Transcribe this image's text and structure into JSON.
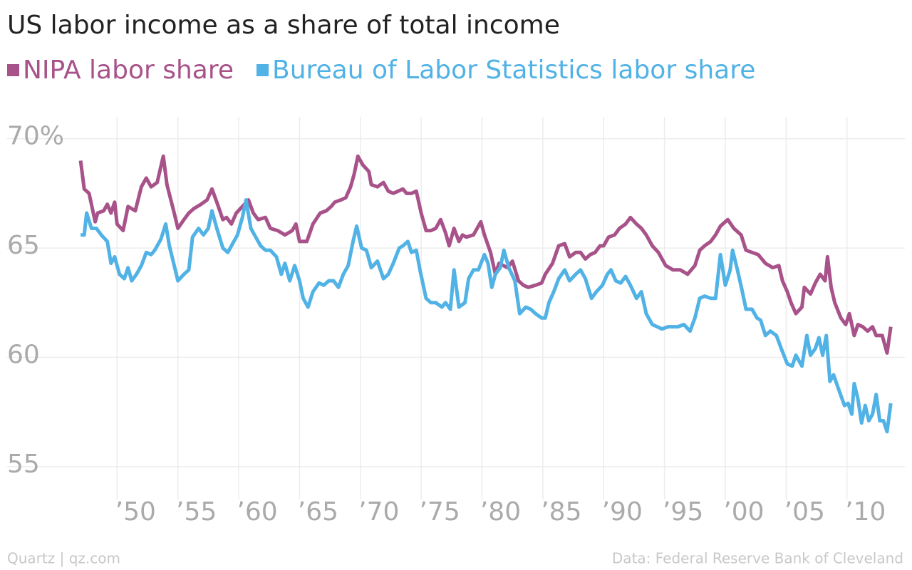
{
  "chart_data": {
    "type": "line",
    "title": "US labor income as a share of total income",
    "source": "Data: Federal Reserve Bank of Cleveland",
    "credit": "Quartz | qz.com",
    "xlim": [
      1946,
      2014
    ],
    "xticks": [
      {
        "value": 1950,
        "label": "’50"
      },
      {
        "value": 1955,
        "label": "’55"
      },
      {
        "value": 1960,
        "label": "’60"
      },
      {
        "value": 1965,
        "label": "’65"
      },
      {
        "value": 1970,
        "label": "’70"
      },
      {
        "value": 1975,
        "label": "’75"
      },
      {
        "value": 1980,
        "label": "’80"
      },
      {
        "value": 1985,
        "label": "’85"
      },
      {
        "value": 1990,
        "label": "’90"
      },
      {
        "value": 1995,
        "label": "’95"
      },
      {
        "value": 2000,
        "label": "’00"
      },
      {
        "value": 2005,
        "label": "’05"
      },
      {
        "value": 2010,
        "label": "’10"
      }
    ],
    "ylim": [
      53.5,
      71
    ],
    "yticks": [
      {
        "value": 70,
        "label": "70%"
      },
      65,
      60,
      55
    ],
    "grid": true,
    "series": [
      {
        "name": "NIPA labor share",
        "color": "#a8528a",
        "x": [
          1947.0,
          1947.3,
          1947.7,
          1948.2,
          1948.4,
          1948.9,
          1949.2,
          1949.5,
          1949.8,
          1950.0,
          1950.5,
          1950.9,
          1951.5,
          1952.0,
          1952.4,
          1952.8,
          1953.3,
          1953.8,
          1954.1,
          1954.7,
          1955.0,
          1955.5,
          1955.9,
          1956.3,
          1956.9,
          1957.4,
          1957.8,
          1958.2,
          1958.7,
          1959.0,
          1959.4,
          1959.8,
          1960.3,
          1960.8,
          1961.2,
          1961.6,
          1962.2,
          1962.6,
          1963.2,
          1963.8,
          1964.4,
          1964.7,
          1965.0,
          1965.6,
          1966.1,
          1966.7,
          1967.2,
          1967.6,
          1967.9,
          1968.4,
          1968.8,
          1969.2,
          1969.5,
          1969.8,
          1970.2,
          1970.7,
          1970.9,
          1971.4,
          1971.9,
          1972.3,
          1972.7,
          1973.1,
          1973.5,
          1973.8,
          1974.2,
          1974.6,
          1975.0,
          1975.4,
          1975.8,
          1976.2,
          1976.6,
          1977.0,
          1977.3,
          1977.7,
          1978.1,
          1978.4,
          1978.7,
          1979.3,
          1979.9,
          1980.2,
          1980.7,
          1981.1,
          1981.4,
          1982.1,
          1982.5,
          1983.0,
          1983.4,
          1983.8,
          1984.4,
          1984.9,
          1985.2,
          1985.8,
          1986.3,
          1986.8,
          1987.2,
          1987.7,
          1988.1,
          1988.5,
          1988.9,
          1989.3,
          1989.7,
          1990.0,
          1990.4,
          1990.9,
          1991.3,
          1991.8,
          1992.2,
          1992.7,
          1993.1,
          1993.5,
          1994.0,
          1994.5,
          1995.1,
          1995.7,
          1996.3,
          1996.9,
          1997.5,
          1997.9,
          1998.3,
          1998.8,
          1999.2,
          1999.6,
          2000.2,
          2000.7,
          2001.3,
          2001.7,
          2002.2,
          2002.7,
          2003.3,
          2003.9,
          2004.4,
          2004.7,
          2005.1,
          2005.4,
          2005.8,
          2006.3,
          2006.5,
          2007.0,
          2007.4,
          2007.8,
          2008.2,
          2008.4,
          2008.7,
          2009.0,
          2009.5,
          2009.9,
          2010.2,
          2010.6,
          2010.9,
          2011.3,
          2011.7,
          2012.1,
          2012.4,
          2012.9,
          2013.3,
          2013.6
        ],
        "values": [
          69.0,
          67.7,
          67.5,
          66.2,
          66.6,
          66.7,
          67.0,
          66.6,
          67.1,
          66.1,
          65.8,
          66.9,
          66.7,
          67.8,
          68.2,
          67.8,
          68.0,
          69.2,
          67.9,
          66.6,
          65.9,
          66.3,
          66.6,
          66.8,
          67.0,
          67.2,
          67.7,
          67.1,
          66.3,
          66.4,
          66.1,
          66.6,
          66.9,
          67.2,
          66.6,
          66.3,
          66.4,
          65.9,
          65.8,
          65.6,
          65.8,
          66.1,
          65.3,
          65.3,
          66.1,
          66.6,
          66.7,
          66.9,
          67.1,
          67.2,
          67.3,
          67.8,
          68.4,
          69.2,
          68.8,
          68.5,
          67.9,
          67.8,
          68.0,
          67.6,
          67.5,
          67.6,
          67.7,
          67.5,
          67.5,
          67.6,
          66.6,
          65.8,
          65.8,
          65.9,
          66.3,
          65.7,
          65.1,
          65.9,
          65.3,
          65.6,
          65.5,
          65.6,
          66.2,
          65.6,
          64.8,
          63.8,
          64.3,
          64.1,
          64.4,
          63.5,
          63.3,
          63.2,
          63.3,
          63.4,
          63.8,
          64.3,
          65.1,
          65.2,
          64.6,
          64.8,
          64.8,
          64.5,
          64.7,
          64.8,
          65.1,
          65.1,
          65.5,
          65.6,
          65.9,
          66.1,
          66.4,
          66.1,
          65.9,
          65.6,
          65.1,
          64.8,
          64.2,
          64.0,
          64.0,
          63.8,
          64.2,
          64.9,
          65.1,
          65.3,
          65.6,
          66.0,
          66.3,
          65.9,
          65.6,
          64.9,
          64.8,
          64.7,
          64.3,
          64.1,
          64.2,
          63.5,
          63.0,
          62.5,
          62.0,
          62.3,
          63.2,
          62.9,
          63.4,
          63.8,
          63.5,
          64.6,
          63.2,
          62.5,
          61.8,
          61.5,
          62.0,
          61.0,
          61.5,
          61.4,
          61.2,
          61.4,
          61.0,
          61.0,
          60.2,
          61.4
        ]
      },
      {
        "name": "Bureau of Labor Statistics labor share",
        "color": "#51b2e5",
        "x": [
          1947.0,
          1947.3,
          1947.5,
          1947.9,
          1948.3,
          1948.7,
          1949.2,
          1949.5,
          1949.8,
          1950.2,
          1950.6,
          1950.9,
          1951.2,
          1951.6,
          1952.0,
          1952.4,
          1952.8,
          1953.1,
          1953.6,
          1954.0,
          1954.3,
          1954.7,
          1955.0,
          1955.5,
          1955.9,
          1956.2,
          1956.7,
          1957.1,
          1957.5,
          1957.8,
          1958.2,
          1958.7,
          1959.1,
          1959.6,
          1959.9,
          1960.3,
          1960.6,
          1961.0,
          1961.3,
          1961.8,
          1962.2,
          1962.6,
          1963.1,
          1963.5,
          1963.8,
          1964.2,
          1964.6,
          1965.0,
          1965.3,
          1965.7,
          1966.1,
          1966.6,
          1967.0,
          1967.4,
          1967.8,
          1968.2,
          1968.6,
          1969.0,
          1969.4,
          1969.7,
          1970.1,
          1970.5,
          1970.9,
          1971.4,
          1971.9,
          1972.3,
          1972.7,
          1973.2,
          1973.5,
          1973.9,
          1974.2,
          1974.6,
          1974.9,
          1975.4,
          1975.8,
          1976.2,
          1976.7,
          1977.0,
          1977.4,
          1977.7,
          1978.1,
          1978.6,
          1978.9,
          1979.3,
          1979.7,
          1980.2,
          1980.5,
          1980.8,
          1981.1,
          1981.5,
          1981.8,
          1982.2,
          1982.7,
          1983.1,
          1983.6,
          1984.0,
          1984.4,
          1984.9,
          1985.2,
          1985.5,
          1985.9,
          1986.3,
          1986.8,
          1987.2,
          1987.7,
          1988.1,
          1988.5,
          1989.0,
          1989.4,
          1989.9,
          1990.3,
          1990.6,
          1991.0,
          1991.4,
          1991.8,
          1992.2,
          1992.7,
          1993.1,
          1993.5,
          1994.0,
          1994.4,
          1994.8,
          1995.3,
          1995.7,
          1996.1,
          1996.6,
          1997.1,
          1997.5,
          1997.9,
          1998.3,
          1998.8,
          1999.2,
          1999.6,
          2000.0,
          2000.4,
          2000.6,
          2001.0,
          2001.4,
          2001.7,
          2002.2,
          2002.6,
          2002.9,
          2003.3,
          2003.7,
          2004.2,
          2004.6,
          2005.1,
          2005.5,
          2005.8,
          2006.3,
          2006.7,
          2007.0,
          2007.4,
          2007.7,
          2008.0,
          2008.3,
          2008.6,
          2008.9,
          2009.4,
          2009.8,
          2010.1,
          2010.4,
          2010.6,
          2010.9,
          2011.2,
          2011.5,
          2011.8,
          2012.1,
          2012.4,
          2012.7,
          2013.0,
          2013.3,
          2013.6
        ],
        "values": [
          65.6,
          65.6,
          66.6,
          65.9,
          65.9,
          65.6,
          65.3,
          64.3,
          64.6,
          63.8,
          63.6,
          64.1,
          63.5,
          63.8,
          64.2,
          64.8,
          64.7,
          64.9,
          65.4,
          66.1,
          65.1,
          64.2,
          63.5,
          63.8,
          64.0,
          65.5,
          65.9,
          65.6,
          65.9,
          66.7,
          65.9,
          65.0,
          64.8,
          65.3,
          65.6,
          66.4,
          67.2,
          65.9,
          65.6,
          65.1,
          64.9,
          64.9,
          64.6,
          63.8,
          64.3,
          63.5,
          64.2,
          63.5,
          62.7,
          62.3,
          63.0,
          63.4,
          63.3,
          63.5,
          63.5,
          63.2,
          63.8,
          64.2,
          65.3,
          66.0,
          65.0,
          64.9,
          64.1,
          64.4,
          63.6,
          63.8,
          64.3,
          65.0,
          65.1,
          65.3,
          64.8,
          64.9,
          64.0,
          62.7,
          62.5,
          62.5,
          62.3,
          62.5,
          62.2,
          64.0,
          62.3,
          62.5,
          63.6,
          64.0,
          64.0,
          64.7,
          64.3,
          63.2,
          63.8,
          64.1,
          64.9,
          64.1,
          63.5,
          62.0,
          62.3,
          62.2,
          62.0,
          61.8,
          61.8,
          62.5,
          63.0,
          63.6,
          64.0,
          63.5,
          63.8,
          64.0,
          63.6,
          62.7,
          63.0,
          63.3,
          63.8,
          64.0,
          63.5,
          63.4,
          63.7,
          63.3,
          62.7,
          63.0,
          62.0,
          61.5,
          61.4,
          61.3,
          61.4,
          61.4,
          61.4,
          61.5,
          61.2,
          61.8,
          62.7,
          62.8,
          62.7,
          62.7,
          64.7,
          63.3,
          64.0,
          64.9,
          64.0,
          63.0,
          62.2,
          62.2,
          61.8,
          61.7,
          61.0,
          61.2,
          61.0,
          60.4,
          59.7,
          59.6,
          60.1,
          59.6,
          61.0,
          60.1,
          60.4,
          60.9,
          60.1,
          61.0,
          58.9,
          59.2,
          58.4,
          57.8,
          57.9,
          57.4,
          58.8,
          58.1,
          57.0,
          57.8,
          57.1,
          57.4,
          58.3,
          57.1,
          57.1,
          56.6,
          57.9
        ]
      }
    ]
  }
}
